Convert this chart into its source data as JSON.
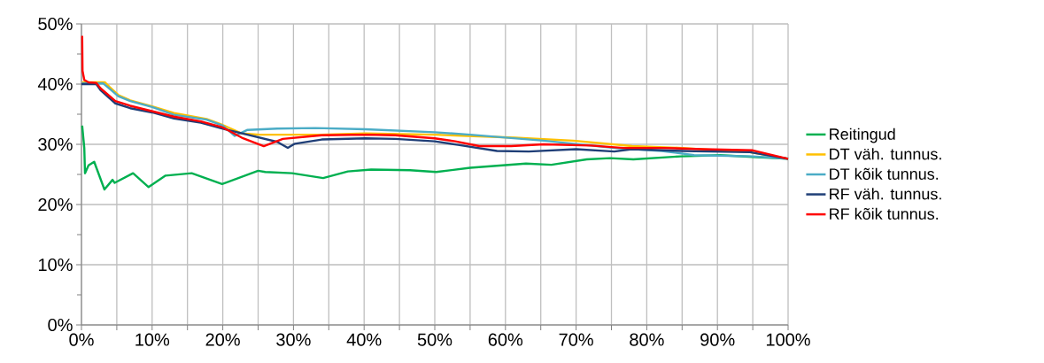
{
  "chart_data": {
    "type": "line",
    "xlim": [
      0,
      100
    ],
    "ylim": [
      0,
      50
    ],
    "xticks": [
      {
        "value": 0,
        "label": "0%"
      },
      {
        "value": 5,
        "label": null
      },
      {
        "value": 10,
        "label": "10%"
      },
      {
        "value": 15,
        "label": null
      },
      {
        "value": 20,
        "label": "20%"
      },
      {
        "value": 25,
        "label": null
      },
      {
        "value": 30,
        "label": "30%"
      },
      {
        "value": 35,
        "label": null
      },
      {
        "value": 40,
        "label": "40%"
      },
      {
        "value": 45,
        "label": null
      },
      {
        "value": 50,
        "label": "50%"
      },
      {
        "value": 55,
        "label": null
      },
      {
        "value": 60,
        "label": "60%"
      },
      {
        "value": 65,
        "label": null
      },
      {
        "value": 70,
        "label": "70%"
      },
      {
        "value": 75,
        "label": null
      },
      {
        "value": 80,
        "label": "80%"
      },
      {
        "value": 85,
        "label": null
      },
      {
        "value": 90,
        "label": "90%"
      },
      {
        "value": 95,
        "label": null
      },
      {
        "value": 100,
        "label": "100%"
      }
    ],
    "yticks": [
      {
        "value": 0,
        "label": "0%"
      },
      {
        "value": 10,
        "label": "10%"
      },
      {
        "value": 20,
        "label": "20%"
      },
      {
        "value": 30,
        "label": "30%"
      },
      {
        "value": 40,
        "label": "40%"
      },
      {
        "value": 50,
        "label": "50%"
      }
    ],
    "grid": true,
    "legend": "right",
    "marker": "none",
    "line_style": "solid",
    "series": [
      {
        "name": "Reitingud",
        "color": "#00b050",
        "x": [
          0.1,
          0.4,
          0.5,
          1.0,
          1.8,
          3.25,
          4.4,
          4.7,
          7.3,
          9.5,
          11.9,
          15.6,
          19.9,
          25,
          26,
          29.8,
          34.2,
          37.7,
          41,
          46.5,
          50.2,
          55,
          62.9,
          66.5,
          71.5,
          74.8,
          78.1,
          84.8,
          90.4,
          95,
          100
        ],
        "values": [
          33.1,
          29.4,
          25.2,
          26.5,
          27.1,
          22.5,
          24.1,
          23.6,
          25.2,
          22.9,
          24.8,
          25.2,
          23.4,
          25.6,
          25.4,
          25.2,
          24.4,
          25.5,
          25.8,
          25.7,
          25.4,
          26.1,
          26.8,
          26.6,
          27.5,
          27.7,
          27.5,
          28.0,
          28.2,
          27.9,
          27.6
        ]
      },
      {
        "name": "DT väh. tunnus.",
        "color": "#ffc000",
        "x": [
          0.1,
          3.3,
          4,
          5.2,
          6.9,
          10,
          13.1,
          17.7,
          20,
          22.7,
          25.2,
          27.7,
          34,
          40.2,
          50,
          61.3,
          69.6,
          77.9,
          85,
          94.6,
          100
        ],
        "values": [
          40.3,
          40.3,
          39.5,
          38.2,
          37.3,
          36.3,
          35.2,
          34.2,
          33.2,
          31.8,
          31.6,
          31.6,
          31.6,
          31.8,
          31.6,
          31.1,
          30.6,
          29.7,
          29.4,
          28.7,
          27.6
        ]
      },
      {
        "name": "DT kõik tunnus.",
        "color": "#4bacc6",
        "x": [
          0.1,
          3.1,
          4,
          5.2,
          6.9,
          10,
          13.1,
          17.7,
          20,
          21.7,
          23.5,
          27.7,
          33.1,
          40.2,
          50,
          55,
          65.4,
          75.4,
          82.1,
          86.7,
          95,
          100
        ],
        "values": [
          40.1,
          40.1,
          39.2,
          38.0,
          37.2,
          36.2,
          34.9,
          34.1,
          33.1,
          31.4,
          32.4,
          32.6,
          32.7,
          32.5,
          32.0,
          31.6,
          30.6,
          29.4,
          28.9,
          28.2,
          28.0,
          27.6
        ]
      },
      {
        "name": "RF väh. tunnus.",
        "color": "#1f3e77",
        "x": [
          0,
          2.1,
          2.7,
          4.8,
          6.9,
          10,
          13.1,
          16.9,
          20,
          23.5,
          27.7,
          29.2,
          30.2,
          34,
          40.2,
          44.4,
          50,
          53.3,
          58.8,
          63.3,
          70,
          75.4,
          77.9,
          85,
          94.6,
          100
        ],
        "values": [
          40,
          40,
          39.0,
          36.8,
          36.0,
          35.3,
          34.3,
          33.6,
          32.6,
          31.6,
          30.4,
          29.4,
          30.1,
          30.8,
          31.0,
          30.9,
          30.5,
          29.9,
          28.9,
          28.8,
          29.2,
          28.8,
          29.2,
          28.9,
          28.7,
          27.6
        ]
      },
      {
        "name": "RF kõik tunnus.",
        "color": "#ff0000",
        "x": [
          0.1,
          0.15,
          0.4,
          1,
          2.1,
          2.7,
          4.8,
          6.9,
          10,
          13.1,
          16.9,
          20,
          22.7,
          25.8,
          28.5,
          34,
          40.2,
          44.4,
          50,
          52.9,
          56.3,
          60.8,
          65.4,
          72.1,
          76.7,
          82.1,
          87.9,
          95,
          100
        ],
        "values": [
          48.0,
          42.2,
          40.7,
          40.3,
          40.2,
          39.3,
          37.2,
          36.4,
          35.5,
          34.6,
          33.8,
          32.8,
          31.1,
          29.7,
          30.9,
          31.5,
          31.6,
          31.5,
          31.0,
          30.5,
          29.7,
          29.7,
          30.0,
          29.8,
          29.4,
          29.4,
          29.2,
          29.0,
          27.6
        ]
      }
    ]
  }
}
